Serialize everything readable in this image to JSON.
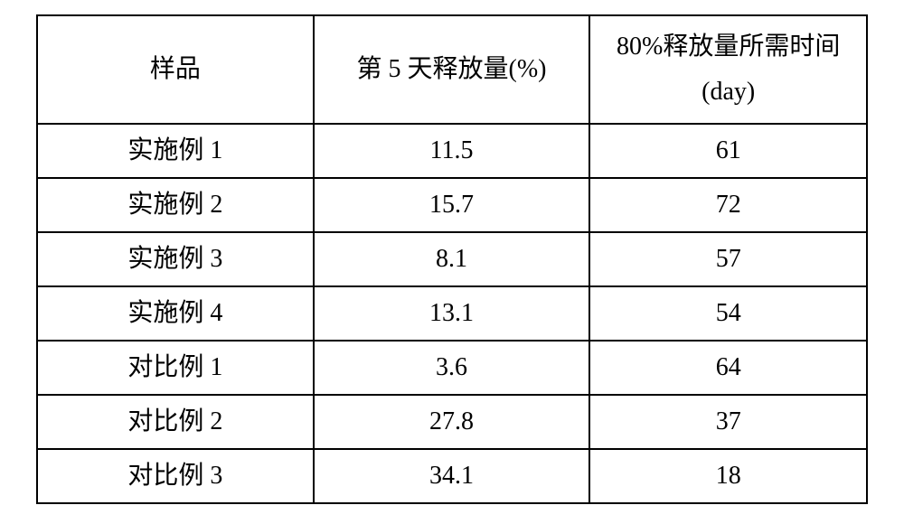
{
  "table": {
    "type": "table",
    "border_color": "#000000",
    "border_width": 2,
    "background_color": "#ffffff",
    "text_color": "#000000",
    "header_fontsize": 28,
    "cell_fontsize": 28,
    "font_family": "SimSun",
    "columns": [
      {
        "label": "样品",
        "width_pct": 33.3,
        "align": "center"
      },
      {
        "label": "第 5 天释放量(%)",
        "width_pct": 33.3,
        "align": "center"
      },
      {
        "label_line1": "80%释放量所需时间",
        "label_line2": "(day)",
        "width_pct": 33.4,
        "align": "center"
      }
    ],
    "rows": [
      {
        "sample": "实施例 1",
        "day5_release": "11.5",
        "time_80pct": "61"
      },
      {
        "sample": "实施例 2",
        "day5_release": "15.7",
        "time_80pct": "72"
      },
      {
        "sample": "实施例 3",
        "day5_release": "8.1",
        "time_80pct": "57"
      },
      {
        "sample": "实施例 4",
        "day5_release": "13.1",
        "time_80pct": "54"
      },
      {
        "sample": "对比例 1",
        "day5_release": "3.6",
        "time_80pct": "64"
      },
      {
        "sample": "对比例 2",
        "day5_release": "27.8",
        "time_80pct": "37"
      },
      {
        "sample": "对比例 3",
        "day5_release": "34.1",
        "time_80pct": "18"
      }
    ]
  }
}
